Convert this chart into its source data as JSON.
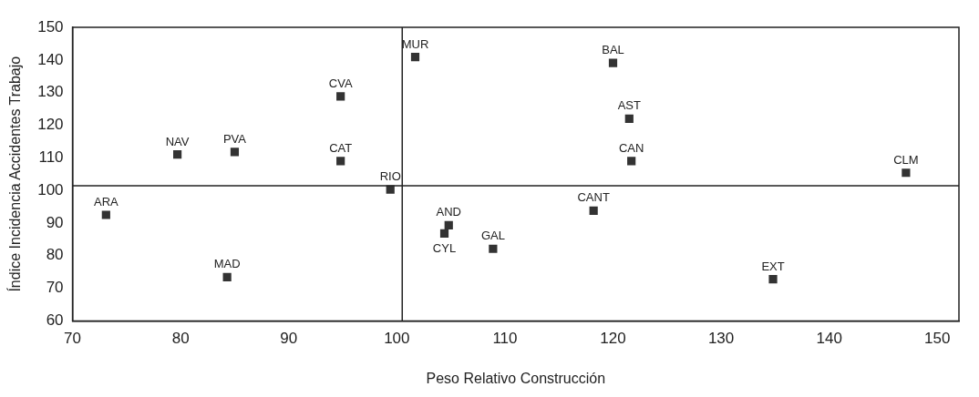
{
  "chart_data": {
    "type": "scatter",
    "xlabel": "Peso Relativo Construcción",
    "ylabel": "Índice Incidencia Accidentes Trabajo",
    "series": [
      {
        "color": "#333333",
        "x": [
          101.7,
          94.8,
          79.7,
          85.0,
          94.8,
          99.4,
          73.1,
          84.3,
          104.8,
          104.4,
          108.9,
          118.2,
          120.0,
          121.5,
          121.7,
          147.1,
          134.8
        ],
        "values": [
          140.9,
          128.8,
          111.0,
          111.8,
          109.0,
          100.3,
          92.5,
          73.4,
          89.3,
          86.8,
          82.1,
          93.8,
          139.1,
          122.0,
          109.0,
          105.4,
          72.8
        ]
      }
    ],
    "annotations": [
      {
        "text": "MUR",
        "x": 101.7,
        "y": 140.9
      },
      {
        "text": "CVA",
        "x": 94.8,
        "y": 128.8
      },
      {
        "text": "NAV",
        "x": 79.7,
        "y": 111.0
      },
      {
        "text": "PVA",
        "x": 85.0,
        "y": 111.8
      },
      {
        "text": "CAT",
        "x": 94.8,
        "y": 109.0
      },
      {
        "text": "RIO",
        "x": 99.4,
        "y": 100.3
      },
      {
        "text": "ARA",
        "x": 73.1,
        "y": 92.5
      },
      {
        "text": "MAD",
        "x": 84.3,
        "y": 73.4
      },
      {
        "text": "AND",
        "x": 104.8,
        "y": 89.3
      },
      {
        "text": "CYL",
        "x": 104.4,
        "y": 86.8
      },
      {
        "text": "GAL",
        "x": 108.9,
        "y": 82.1
      },
      {
        "text": "CANT",
        "x": 118.2,
        "y": 93.8
      },
      {
        "text": "BAL",
        "x": 120.0,
        "y": 139.1
      },
      {
        "text": "AST",
        "x": 121.5,
        "y": 122.0
      },
      {
        "text": "CAN",
        "x": 121.7,
        "y": 109.0
      },
      {
        "text": "CLM",
        "x": 147.1,
        "y": 105.4
      },
      {
        "text": "EXT",
        "x": 134.8,
        "y": 72.8
      }
    ],
    "ref_lines": [
      {
        "axis": "x",
        "value": 100.5,
        "color": "#222222"
      },
      {
        "axis": "y",
        "value": 101.4,
        "color": "#222222"
      }
    ],
    "xlim": [
      70,
      152
    ],
    "xticks": [
      70,
      80,
      90,
      100,
      110,
      120,
      130,
      140,
      150
    ],
    "ylim": [
      60,
      150
    ],
    "yticks": [
      60,
      70,
      80,
      90,
      100,
      110,
      120,
      130,
      140,
      150
    ],
    "grid": false,
    "legend": false,
    "marker": "square"
  }
}
